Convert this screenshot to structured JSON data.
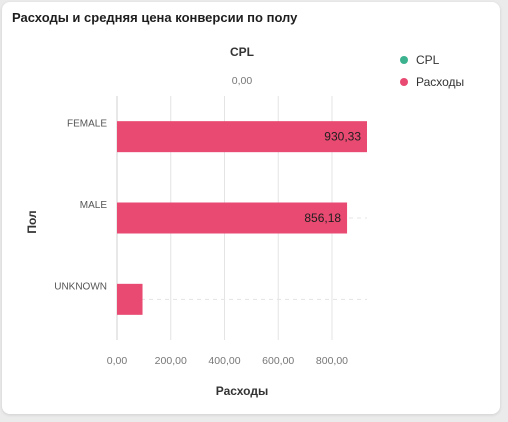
{
  "card": {
    "title": "Расходы и средняя цена конверсии по полу"
  },
  "colors": {
    "cpl": "#3cb38e",
    "spend": "#e84a72",
    "grid": "#e4e4e4",
    "axis_text": "#777777"
  },
  "chart_data": {
    "type": "bar",
    "orientation": "horizontal",
    "categories": [
      "FEMALE",
      "MALE",
      "UNKNOWN"
    ],
    "series": [
      {
        "name": "CPL",
        "values": [
          0,
          0,
          0
        ]
      },
      {
        "name": "Расходы",
        "values": [
          930.33,
          856.18,
          95
        ]
      }
    ],
    "data_labels": [
      "930,33",
      "856,18",
      ""
    ],
    "xlabel": "Расходы",
    "ylabel": "Пол",
    "top_axis_label": "CPL",
    "top_axis_ticks": [
      "0,00"
    ],
    "x_ticks": [
      0,
      200,
      400,
      600,
      800
    ],
    "x_tick_labels": [
      "0,00",
      "200,00",
      "400,00",
      "600,00",
      "800,00"
    ],
    "xlim": [
      0,
      930.33
    ],
    "grid": true,
    "legend_position": "top-right"
  }
}
